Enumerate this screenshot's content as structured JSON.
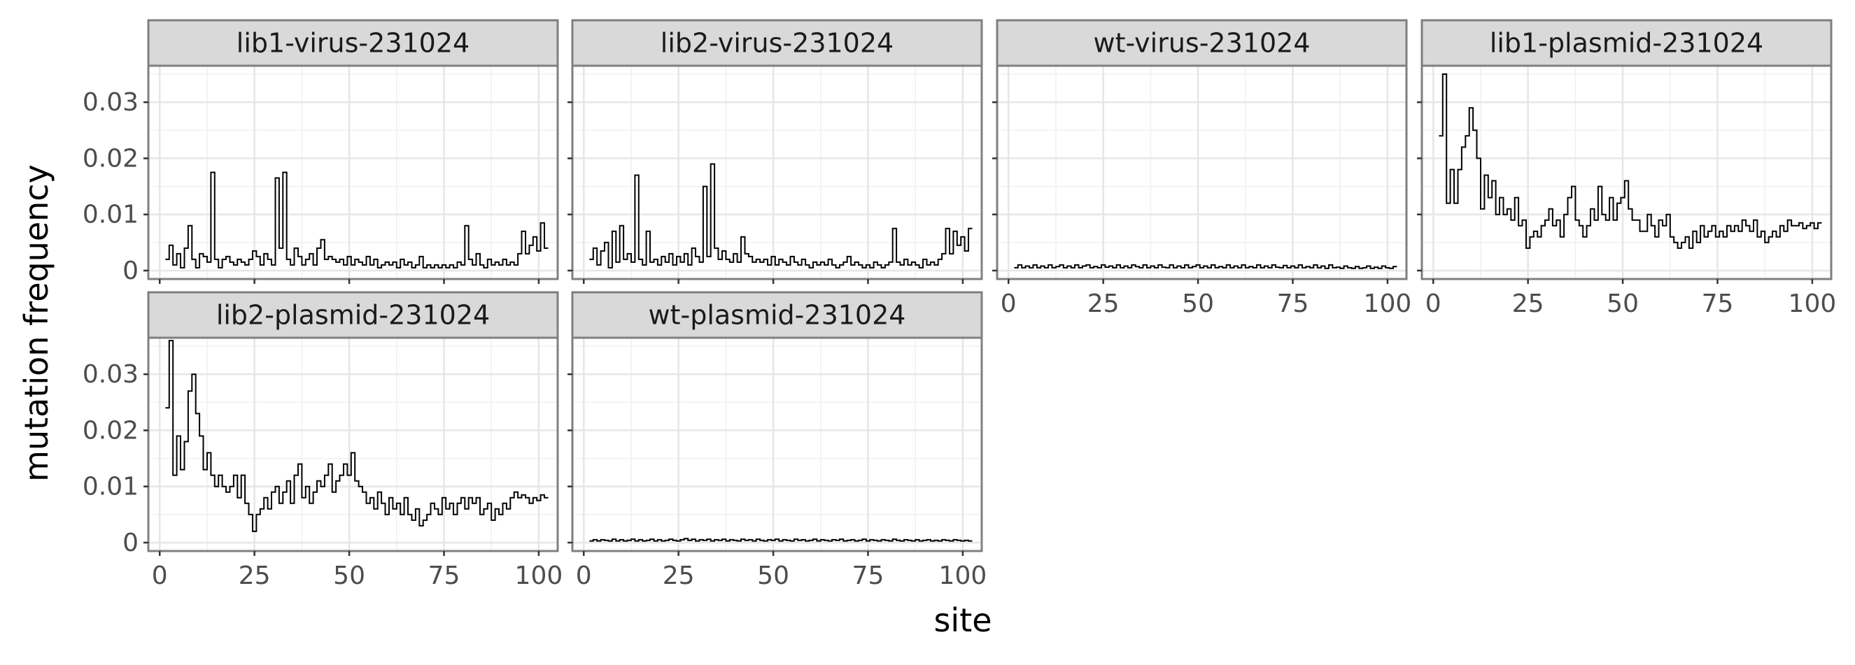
{
  "chart_data": {
    "type": "line",
    "style": "step",
    "xlabel": "site",
    "ylabel": "mutation frequency",
    "xlim": [
      -3,
      105
    ],
    "ylim": [
      -0.0015,
      0.0365
    ],
    "x_ticks": [
      0,
      25,
      50,
      75,
      100
    ],
    "x_tick_labels": [
      "0",
      "25",
      "50",
      "75",
      "100"
    ],
    "y_ticks": [
      0,
      0.01,
      0.02,
      0.03
    ],
    "y_tick_labels": [
      "0",
      "0.01",
      "0.02",
      "0.03"
    ],
    "grid": true,
    "legend": "none",
    "line_color": "#000000",
    "x": [
      2,
      3,
      4,
      5,
      6,
      7,
      8,
      9,
      10,
      11,
      12,
      13,
      14,
      15,
      16,
      17,
      18,
      19,
      20,
      21,
      22,
      23,
      24,
      25,
      26,
      27,
      28,
      29,
      30,
      31,
      32,
      33,
      34,
      35,
      36,
      37,
      38,
      39,
      40,
      41,
      42,
      43,
      44,
      45,
      46,
      47,
      48,
      49,
      50,
      51,
      52,
      53,
      54,
      55,
      56,
      57,
      58,
      59,
      60,
      61,
      62,
      63,
      64,
      65,
      66,
      67,
      68,
      69,
      70,
      71,
      72,
      73,
      74,
      75,
      76,
      77,
      78,
      79,
      80,
      81,
      82,
      83,
      84,
      85,
      86,
      87,
      88,
      89,
      90,
      91,
      92,
      93,
      94,
      95,
      96,
      97,
      98,
      99,
      100,
      101,
      102
    ],
    "panels": [
      {
        "label": "lib1-virus-231024",
        "y": [
          0.002,
          0.0045,
          0.001,
          0.003,
          0.0005,
          0.004,
          0.008,
          0.002,
          0.0005,
          0.003,
          0.0025,
          0.0015,
          0.0175,
          0.002,
          0.0005,
          0.002,
          0.0025,
          0.0015,
          0.001,
          0.002,
          0.0015,
          0.001,
          0.002,
          0.0035,
          0.0025,
          0.001,
          0.003,
          0.002,
          0.001,
          0.0165,
          0.004,
          0.0175,
          0.002,
          0.001,
          0.004,
          0.0025,
          0.001,
          0.002,
          0.003,
          0.001,
          0.004,
          0.0055,
          0.002,
          0.0025,
          0.002,
          0.0015,
          0.002,
          0.001,
          0.0025,
          0.001,
          0.002,
          0.0015,
          0.001,
          0.0025,
          0.001,
          0.002,
          0.0005,
          0.001,
          0.0015,
          0.001,
          0.0015,
          0.0005,
          0.002,
          0.001,
          0.0015,
          0.0005,
          0.001,
          0.0025,
          0.0005,
          0.001,
          0.0005,
          0.001,
          0.0005,
          0.001,
          0.0005,
          0.001,
          0.0005,
          0.0015,
          0.001,
          0.008,
          0.002,
          0.001,
          0.003,
          0.001,
          0.0005,
          0.002,
          0.001,
          0.0015,
          0.001,
          0.002,
          0.001,
          0.0015,
          0.001,
          0.003,
          0.007,
          0.003,
          0.0045,
          0.006,
          0.0035,
          0.0085,
          0.004
        ]
      },
      {
        "label": "lib2-virus-231024",
        "y": [
          0.002,
          0.004,
          0.001,
          0.0035,
          0.005,
          0.0005,
          0.007,
          0.0015,
          0.008,
          0.002,
          0.003,
          0.0015,
          0.017,
          0.002,
          0.001,
          0.007,
          0.0015,
          0.002,
          0.001,
          0.0025,
          0.0015,
          0.003,
          0.001,
          0.0025,
          0.0015,
          0.003,
          0.001,
          0.004,
          0.0025,
          0.0015,
          0.015,
          0.0025,
          0.019,
          0.004,
          0.002,
          0.0035,
          0.002,
          0.0015,
          0.003,
          0.0015,
          0.006,
          0.003,
          0.0025,
          0.0015,
          0.002,
          0.0015,
          0.002,
          0.001,
          0.0025,
          0.001,
          0.002,
          0.0015,
          0.001,
          0.0025,
          0.0015,
          0.001,
          0.002,
          0.001,
          0.0005,
          0.0015,
          0.001,
          0.0015,
          0.001,
          0.002,
          0.001,
          0.0005,
          0.001,
          0.0015,
          0.0025,
          0.001,
          0.0015,
          0.001,
          0.0005,
          0.001,
          0.0005,
          0.0015,
          0.001,
          0.0005,
          0.001,
          0.0015,
          0.0075,
          0.0015,
          0.001,
          0.002,
          0.001,
          0.0015,
          0.001,
          0.0005,
          0.002,
          0.001,
          0.0015,
          0.001,
          0.002,
          0.003,
          0.0075,
          0.003,
          0.007,
          0.0045,
          0.006,
          0.0035,
          0.0075
        ]
      },
      {
        "label": "wt-virus-231024",
        "y": [
          0.0005,
          0.001,
          0.0005,
          0.0008,
          0.0005,
          0.001,
          0.0005,
          0.0008,
          0.0005,
          0.001,
          0.0005,
          0.0007,
          0.001,
          0.0005,
          0.0008,
          0.0005,
          0.001,
          0.0005,
          0.0008,
          0.001,
          0.0005,
          0.0007,
          0.0005,
          0.001,
          0.0006,
          0.0008,
          0.0005,
          0.001,
          0.0005,
          0.0008,
          0.0005,
          0.001,
          0.0007,
          0.0005,
          0.001,
          0.0005,
          0.0008,
          0.0005,
          0.001,
          0.0006,
          0.0005,
          0.001,
          0.0005,
          0.0008,
          0.0005,
          0.001,
          0.0005,
          0.0007,
          0.001,
          0.0005,
          0.0008,
          0.0005,
          0.001,
          0.0005,
          0.0007,
          0.0005,
          0.001,
          0.0005,
          0.0008,
          0.0005,
          0.001,
          0.0005,
          0.0007,
          0.0005,
          0.001,
          0.0005,
          0.0008,
          0.0005,
          0.001,
          0.0006,
          0.0005,
          0.0009,
          0.0005,
          0.0008,
          0.0005,
          0.001,
          0.0005,
          0.0007,
          0.0005,
          0.001,
          0.0005,
          0.0008,
          0.0004,
          0.001,
          0.0005,
          0.0006,
          0.0004,
          0.0008,
          0.0005,
          0.0004,
          0.0007,
          0.0004,
          0.0005,
          0.0008,
          0.0004,
          0.0006,
          0.0004,
          0.0008,
          0.0005,
          0.0004,
          0.0007
        ]
      },
      {
        "label": "lib1-plasmid-231024",
        "y": [
          0.024,
          0.035,
          0.012,
          0.018,
          0.012,
          0.018,
          0.022,
          0.024,
          0.029,
          0.025,
          0.02,
          0.011,
          0.017,
          0.013,
          0.016,
          0.01,
          0.013,
          0.01,
          0.011,
          0.009,
          0.013,
          0.008,
          0.009,
          0.004,
          0.006,
          0.007,
          0.006,
          0.008,
          0.009,
          0.011,
          0.008,
          0.009,
          0.006,
          0.01,
          0.013,
          0.015,
          0.009,
          0.008,
          0.006,
          0.008,
          0.011,
          0.009,
          0.015,
          0.01,
          0.009,
          0.013,
          0.009,
          0.012,
          0.013,
          0.016,
          0.011,
          0.009,
          0.009,
          0.007,
          0.007,
          0.01,
          0.008,
          0.006,
          0.009,
          0.008,
          0.01,
          0.006,
          0.005,
          0.004,
          0.005,
          0.006,
          0.004,
          0.007,
          0.005,
          0.008,
          0.006,
          0.007,
          0.008,
          0.006,
          0.007,
          0.006,
          0.008,
          0.007,
          0.008,
          0.007,
          0.009,
          0.008,
          0.007,
          0.009,
          0.006,
          0.007,
          0.005,
          0.006,
          0.007,
          0.006,
          0.008,
          0.007,
          0.009,
          0.008,
          0.008,
          0.0085,
          0.0075,
          0.008,
          0.0085,
          0.0075,
          0.0085
        ]
      },
      {
        "label": "lib2-plasmid-231024",
        "y": [
          0.024,
          0.036,
          0.012,
          0.019,
          0.013,
          0.018,
          0.027,
          0.03,
          0.023,
          0.019,
          0.013,
          0.016,
          0.012,
          0.01,
          0.012,
          0.01,
          0.009,
          0.01,
          0.012,
          0.008,
          0.012,
          0.007,
          0.005,
          0.002,
          0.005,
          0.006,
          0.008,
          0.006,
          0.009,
          0.01,
          0.007,
          0.009,
          0.011,
          0.007,
          0.012,
          0.014,
          0.008,
          0.01,
          0.007,
          0.009,
          0.011,
          0.01,
          0.012,
          0.014,
          0.009,
          0.011,
          0.012,
          0.014,
          0.012,
          0.016,
          0.011,
          0.01,
          0.009,
          0.007,
          0.008,
          0.006,
          0.009,
          0.007,
          0.005,
          0.008,
          0.006,
          0.007,
          0.005,
          0.008,
          0.005,
          0.004,
          0.006,
          0.003,
          0.004,
          0.005,
          0.007,
          0.006,
          0.005,
          0.008,
          0.006,
          0.007,
          0.005,
          0.007,
          0.008,
          0.006,
          0.008,
          0.007,
          0.008,
          0.005,
          0.006,
          0.007,
          0.004,
          0.006,
          0.005,
          0.007,
          0.006,
          0.008,
          0.009,
          0.008,
          0.0085,
          0.008,
          0.007,
          0.008,
          0.0075,
          0.0085,
          0.008
        ]
      },
      {
        "label": "wt-plasmid-231024",
        "y": [
          0.0003,
          0.0005,
          0.0003,
          0.0005,
          0.0004,
          0.0003,
          0.0006,
          0.0003,
          0.0005,
          0.0003,
          0.0004,
          0.0006,
          0.0003,
          0.0005,
          0.0003,
          0.0004,
          0.0006,
          0.0003,
          0.0005,
          0.0003,
          0.0004,
          0.0006,
          0.0004,
          0.0003,
          0.0005,
          0.0007,
          0.0004,
          0.0006,
          0.0003,
          0.0005,
          0.0004,
          0.0006,
          0.0003,
          0.0005,
          0.0004,
          0.0006,
          0.0003,
          0.0005,
          0.0004,
          0.0003,
          0.0006,
          0.0004,
          0.0005,
          0.0003,
          0.0006,
          0.0004,
          0.0003,
          0.0005,
          0.0004,
          0.0006,
          0.0003,
          0.0005,
          0.0004,
          0.0003,
          0.0006,
          0.0004,
          0.0005,
          0.0003,
          0.0004,
          0.0006,
          0.0003,
          0.0005,
          0.0004,
          0.0003,
          0.0005,
          0.0004,
          0.0006,
          0.0003,
          0.0004,
          0.0005,
          0.0003,
          0.0004,
          0.0006,
          0.0003,
          0.0005,
          0.0004,
          0.0003,
          0.0005,
          0.0004,
          0.0003,
          0.0006,
          0.0004,
          0.0003,
          0.0005,
          0.0004,
          0.0003,
          0.0005,
          0.0003,
          0.0004,
          0.0005,
          0.0003,
          0.0004,
          0.0003,
          0.0005,
          0.0004,
          0.0003,
          0.0005,
          0.0004,
          0.0003,
          0.0004,
          0.0003
        ]
      }
    ]
  }
}
